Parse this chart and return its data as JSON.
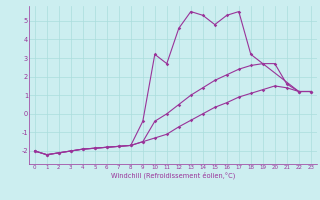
{
  "xlabel": "Windchill (Refroidissement éolien,°C)",
  "bg_color": "#cceef0",
  "grid_color": "#aadddd",
  "line_color": "#993399",
  "xlim": [
    -0.5,
    23.5
  ],
  "ylim": [
    -2.7,
    5.8
  ],
  "xticks": [
    0,
    1,
    2,
    3,
    4,
    5,
    6,
    7,
    8,
    9,
    10,
    11,
    12,
    13,
    14,
    15,
    16,
    17,
    18,
    19,
    20,
    21,
    22,
    23
  ],
  "yticks": [
    -2,
    -1,
    0,
    1,
    2,
    3,
    4,
    5
  ],
  "line1_x": [
    0,
    1,
    2,
    3,
    4,
    5,
    6,
    7,
    8,
    9,
    10,
    11,
    12,
    13,
    14,
    15,
    16,
    17,
    18,
    22,
    23
  ],
  "line1_y": [
    -2.0,
    -2.2,
    -2.1,
    -2.0,
    -1.9,
    -1.85,
    -1.8,
    -1.75,
    -1.7,
    -0.4,
    3.2,
    2.7,
    4.6,
    5.5,
    5.3,
    4.8,
    5.3,
    5.5,
    3.2,
    1.2,
    1.2
  ],
  "line2_x": [
    0,
    1,
    2,
    3,
    4,
    5,
    6,
    7,
    8,
    9,
    10,
    11,
    12,
    13,
    14,
    15,
    16,
    17,
    18,
    19,
    20,
    21,
    22,
    23
  ],
  "line2_y": [
    -2.0,
    -2.2,
    -2.1,
    -2.0,
    -1.9,
    -1.85,
    -1.8,
    -1.75,
    -1.7,
    -1.5,
    -1.3,
    -1.1,
    -0.7,
    -0.35,
    0.0,
    0.35,
    0.6,
    0.9,
    1.1,
    1.3,
    1.5,
    1.4,
    1.2,
    1.2
  ],
  "line3_x": [
    0,
    1,
    2,
    3,
    4,
    5,
    6,
    7,
    8,
    9,
    10,
    11,
    12,
    13,
    14,
    15,
    16,
    17,
    18,
    19,
    20,
    21,
    22,
    23
  ],
  "line3_y": [
    -2.0,
    -2.2,
    -2.1,
    -2.0,
    -1.9,
    -1.85,
    -1.8,
    -1.75,
    -1.7,
    -1.5,
    -0.4,
    0.0,
    0.5,
    1.0,
    1.4,
    1.8,
    2.1,
    2.4,
    2.6,
    2.7,
    2.7,
    1.6,
    1.2,
    1.2
  ]
}
